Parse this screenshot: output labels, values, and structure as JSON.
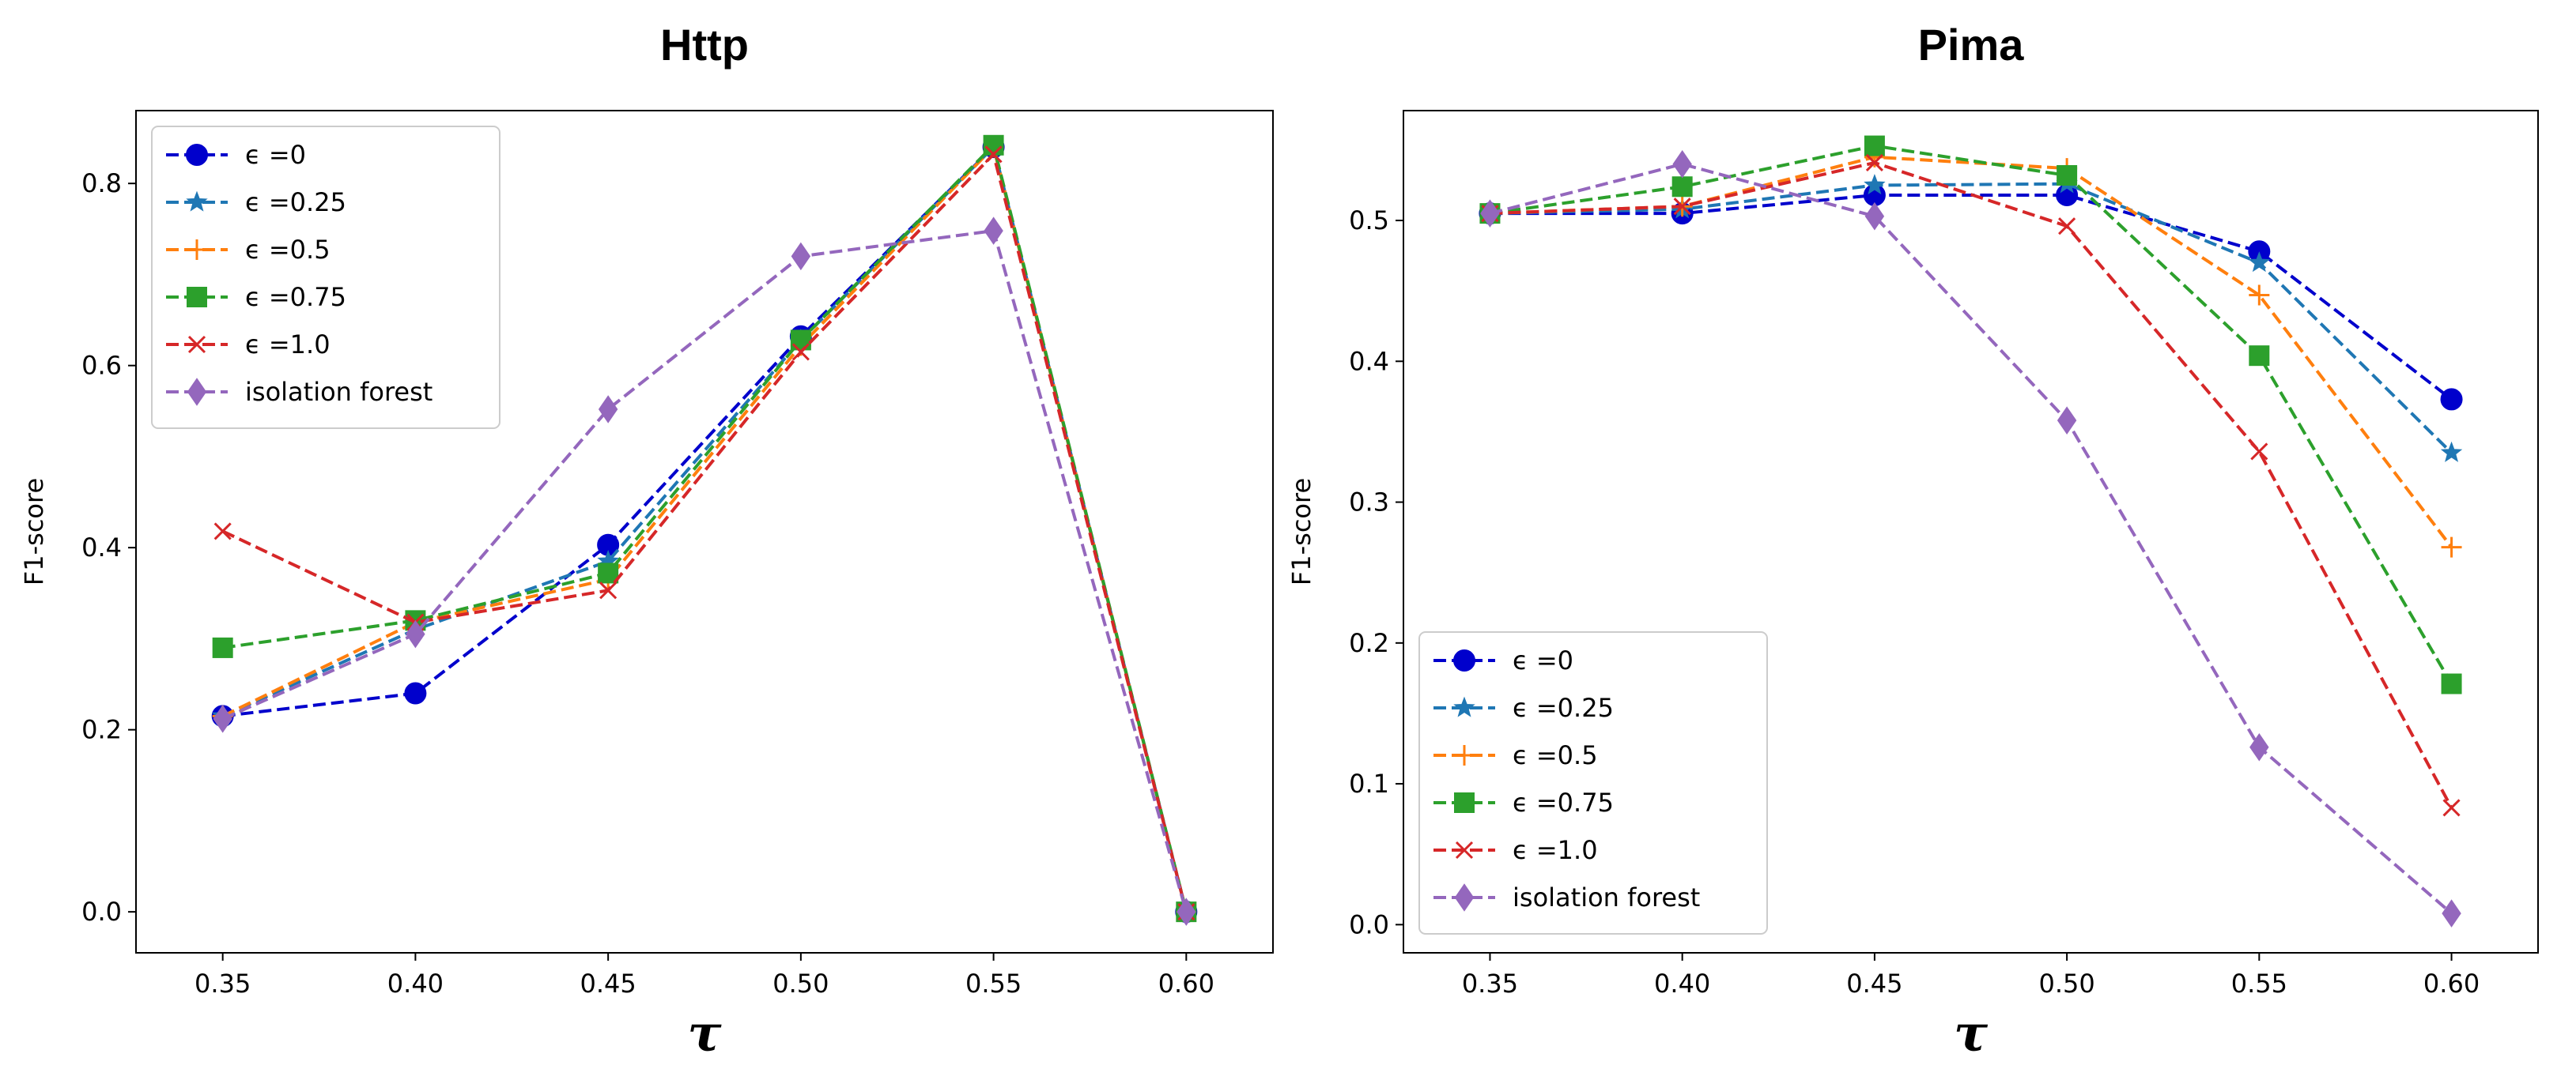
{
  "chart_data": [
    {
      "type": "line",
      "title": "Http",
      "xlabel": "τ",
      "ylabel": "F1-score",
      "x": [
        0.35,
        0.4,
        0.45,
        0.5,
        0.55,
        0.6
      ],
      "xticks": [
        "0.35",
        "0.40",
        "0.45",
        "0.50",
        "0.55",
        "0.60"
      ],
      "yticks": [
        "0.0",
        "0.2",
        "0.4",
        "0.6",
        "0.8"
      ],
      "ylim": [
        -0.045,
        0.88
      ],
      "legend_position": "upper-left",
      "series": [
        {
          "name": "ϵ =0",
          "color": "#0000cc",
          "marker": "circle",
          "values": [
            0.215,
            0.24,
            0.403,
            0.632,
            0.84,
            0.0
          ]
        },
        {
          "name": "ϵ =0.25",
          "color": "#1f77b4",
          "marker": "star",
          "values": [
            0.215,
            0.31,
            0.385,
            0.628,
            0.84,
            0.0
          ]
        },
        {
          "name": "ϵ =0.5",
          "color": "#ff7f0e",
          "marker": "plus",
          "values": [
            0.215,
            0.318,
            0.365,
            0.622,
            0.84,
            0.0
          ]
        },
        {
          "name": "ϵ =0.75",
          "color": "#2ca02c",
          "marker": "square",
          "values": [
            0.29,
            0.32,
            0.372,
            0.628,
            0.842,
            0.0
          ]
        },
        {
          "name": "ϵ =1.0",
          "color": "#d62728",
          "marker": "x",
          "values": [
            0.418,
            0.318,
            0.353,
            0.615,
            0.832,
            0.0
          ]
        },
        {
          "name": "isolation forest",
          "color": "#9467bd",
          "marker": "diamond",
          "values": [
            0.212,
            0.305,
            0.552,
            0.72,
            0.748,
            0.0
          ]
        }
      ]
    },
    {
      "type": "line",
      "title": "Pima",
      "xlabel": "τ",
      "ylabel": "F1-score",
      "x": [
        0.35,
        0.4,
        0.45,
        0.5,
        0.55,
        0.6
      ],
      "xticks": [
        "0.35",
        "0.40",
        "0.45",
        "0.50",
        "0.55",
        "0.60"
      ],
      "yticks": [
        "0.0",
        "0.1",
        "0.2",
        "0.3",
        "0.4",
        "0.5"
      ],
      "ylim": [
        -0.02,
        0.578
      ],
      "legend_position": "lower-left",
      "series": [
        {
          "name": "ϵ =0",
          "color": "#0000cc",
          "marker": "circle",
          "values": [
            0.505,
            0.505,
            0.518,
            0.518,
            0.478,
            0.373
          ]
        },
        {
          "name": "ϵ =0.25",
          "color": "#1f77b4",
          "marker": "star",
          "values": [
            0.505,
            0.508,
            0.525,
            0.526,
            0.47,
            0.335
          ]
        },
        {
          "name": "ϵ =0.5",
          "color": "#ff7f0e",
          "marker": "plus",
          "values": [
            0.505,
            0.51,
            0.545,
            0.537,
            0.447,
            0.268
          ]
        },
        {
          "name": "ϵ =0.75",
          "color": "#2ca02c",
          "marker": "square",
          "values": [
            0.505,
            0.524,
            0.553,
            0.532,
            0.404,
            0.171
          ]
        },
        {
          "name": "ϵ =1.0",
          "color": "#d62728",
          "marker": "x",
          "values": [
            0.505,
            0.51,
            0.541,
            0.496,
            0.336,
            0.083
          ]
        },
        {
          "name": "isolation forest",
          "color": "#9467bd",
          "marker": "diamond",
          "values": [
            0.505,
            0.54,
            0.503,
            0.358,
            0.126,
            0.008
          ]
        }
      ]
    }
  ]
}
